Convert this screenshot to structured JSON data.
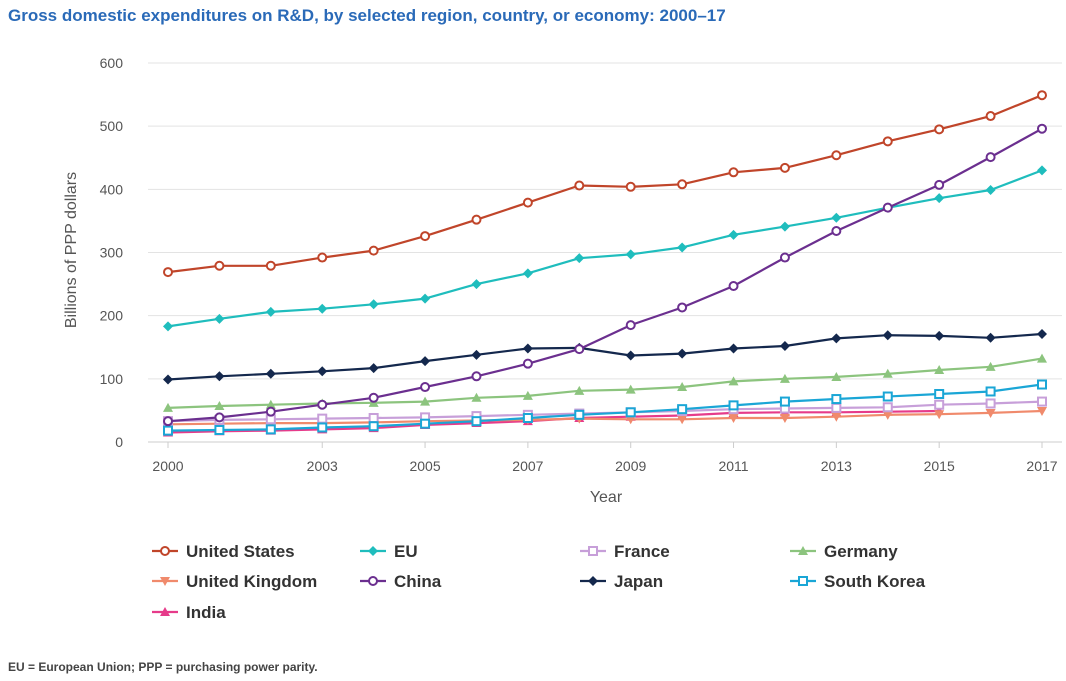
{
  "title": "Gross domestic expenditures on R&D, by selected region, country, or economy: 2000–17",
  "note": "EU = European Union; PPP = purchasing power parity.",
  "chart_data": {
    "type": "line",
    "title": "Gross domestic expenditures on R&D, by selected region, country, or economy: 2000–17",
    "xlabel": "Year",
    "ylabel": "Billions of PPP dollars",
    "xlim": [
      2000,
      2017
    ],
    "ylim": [
      0,
      600
    ],
    "x_ticks": [
      2000,
      2003,
      2005,
      2007,
      2009,
      2011,
      2013,
      2015,
      2017
    ],
    "y_ticks": [
      0,
      100,
      200,
      300,
      400,
      500,
      600
    ],
    "grid": "horizontal",
    "legend_position": "bottom",
    "x": [
      2000,
      2001,
      2002,
      2003,
      2004,
      2005,
      2006,
      2007,
      2008,
      2009,
      2010,
      2011,
      2012,
      2013,
      2014,
      2015,
      2016,
      2017
    ],
    "series": [
      {
        "name": "United States",
        "color": "#c0452a",
        "marker": "circle",
        "values": [
          269,
          279,
          279,
          292,
          303,
          326,
          352,
          379,
          406,
          404,
          408,
          427,
          434,
          454,
          476,
          495,
          516,
          549
        ]
      },
      {
        "name": "EU",
        "color": "#1fbdbd",
        "marker": "diamond",
        "values": [
          183,
          195,
          206,
          211,
          218,
          227,
          250,
          267,
          291,
          297,
          308,
          328,
          341,
          355,
          371,
          386,
          399,
          430
        ]
      },
      {
        "name": "France",
        "color": "#c79fd9",
        "marker": "square",
        "values": [
          33,
          35,
          36,
          37,
          38,
          39,
          41,
          43,
          45,
          47,
          49,
          52,
          53,
          54,
          55,
          59,
          61,
          64
        ]
      },
      {
        "name": "Germany",
        "color": "#8cc47e",
        "marker": "triangle",
        "values": [
          54,
          57,
          59,
          61,
          62,
          64,
          70,
          73,
          81,
          83,
          87,
          96,
          100,
          103,
          108,
          114,
          119,
          132
        ]
      },
      {
        "name": "United Kingdom",
        "color": "#f08a6c",
        "marker": "triangle-down",
        "values": [
          28,
          29,
          30,
          30,
          31,
          33,
          34,
          35,
          37,
          36,
          36,
          38,
          38,
          40,
          43,
          44,
          46,
          49
        ]
      },
      {
        "name": "China",
        "color": "#6b2f8f",
        "marker": "circle",
        "values": [
          33,
          39,
          48,
          59,
          70,
          87,
          104,
          124,
          147,
          185,
          213,
          247,
          292,
          334,
          371,
          407,
          451,
          496
        ]
      },
      {
        "name": "Japan",
        "color": "#14284d",
        "marker": "diamond",
        "values": [
          99,
          104,
          108,
          112,
          117,
          128,
          138,
          148,
          149,
          137,
          140,
          148,
          152,
          164,
          169,
          168,
          165,
          171
        ]
      },
      {
        "name": "South Korea",
        "color": "#1aa6d6",
        "marker": "square",
        "values": [
          18,
          19,
          20,
          23,
          25,
          29,
          33,
          38,
          43,
          47,
          52,
          58,
          64,
          68,
          72,
          76,
          80,
          91
        ]
      },
      {
        "name": "India",
        "color": "#e63b8a",
        "marker": "triangle",
        "values": [
          15,
          17,
          18,
          20,
          22,
          27,
          30,
          33,
          38,
          40,
          42,
          46,
          47,
          47,
          48,
          49,
          null,
          null
        ]
      }
    ]
  }
}
